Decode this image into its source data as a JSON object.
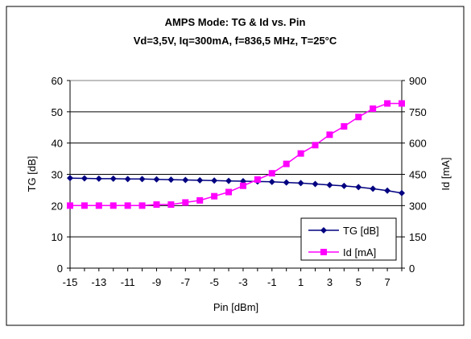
{
  "chart_data": {
    "type": "line",
    "title": "AMPS Mode: TG & Id vs. Pin",
    "subtitle": "Vd=3,5V, Iq=300mA, f=836,5 MHz, T=25°C",
    "xlabel": "Pin [dBm]",
    "ylabel": "TG [dB]",
    "y2label": "Id [mA]",
    "xlim": [
      -15,
      8
    ],
    "x_ticks": [
      -15,
      -13,
      -11,
      -9,
      -7,
      -5,
      -3,
      -1,
      1,
      3,
      5,
      7
    ],
    "ylim": [
      0,
      60
    ],
    "y_ticks": [
      0,
      10,
      20,
      30,
      40,
      50,
      60
    ],
    "y2lim": [
      0,
      900
    ],
    "y2_ticks": [
      0,
      150,
      300,
      450,
      600,
      750,
      900
    ],
    "grid": "horizontal",
    "legend_position": "bottom-right",
    "x": [
      -15,
      -14,
      -13,
      -12,
      -11,
      -10,
      -9,
      -8,
      -7,
      -6,
      -5,
      -4,
      -3,
      -2,
      -1,
      0,
      1,
      2,
      3,
      4,
      5,
      6,
      7,
      8
    ],
    "series": [
      {
        "name": "TG [dB]",
        "axis": "left",
        "color": "#000080",
        "marker": "diamond",
        "values": [
          28.8,
          28.7,
          28.6,
          28.6,
          28.5,
          28.5,
          28.4,
          28.3,
          28.2,
          28.1,
          28.0,
          27.9,
          27.8,
          27.7,
          27.6,
          27.4,
          27.2,
          26.9,
          26.6,
          26.3,
          25.9,
          25.4,
          24.8,
          24.0
        ]
      },
      {
        "name": "Id [mA]",
        "axis": "right",
        "color": "#ff00ff",
        "marker": "square",
        "values": [
          300,
          300,
          300,
          300,
          300,
          300,
          305,
          305,
          315,
          325,
          345,
          365,
          395,
          425,
          455,
          500,
          550,
          590,
          640,
          680,
          725,
          765,
          790,
          790
        ]
      }
    ]
  }
}
